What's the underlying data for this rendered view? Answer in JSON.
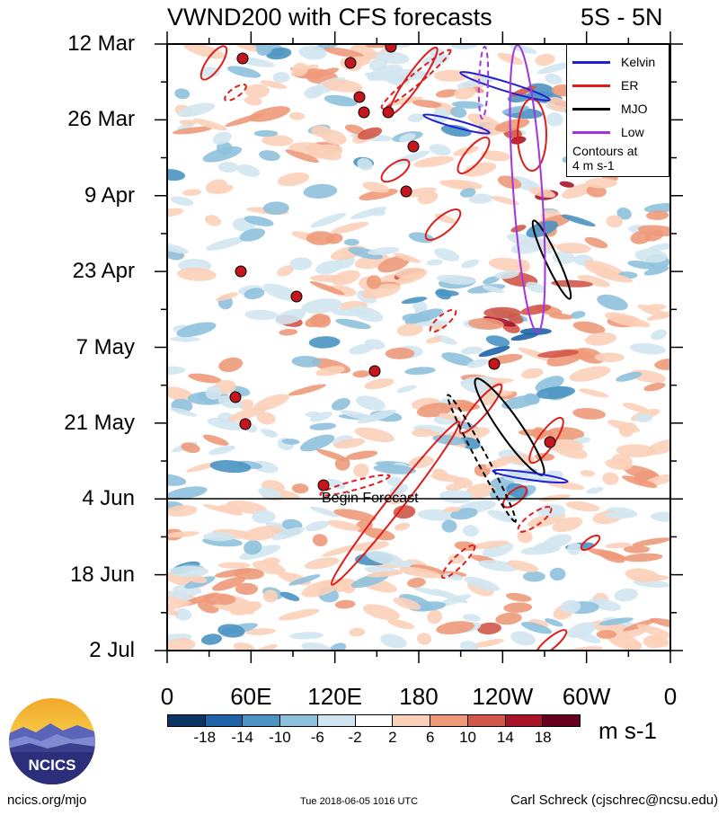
{
  "title": {
    "left": "VWND200 with CFS forecasts",
    "right": "5S - 5N"
  },
  "chart_data": {
    "type": "heatmap",
    "description_field": "Hovmoller of 200-hPa meridional wind anomaly averaged 5S-5N",
    "x_ticks": [
      "0",
      "60E",
      "120E",
      "180",
      "120W",
      "60W",
      "0"
    ],
    "y_ticks": [
      "12 Mar",
      "26 Mar",
      "9 Apr",
      "23 Apr",
      "7 May",
      "21 May",
      "4 Jun",
      "18 Jun",
      "2 Jul"
    ],
    "colorbar": {
      "ticks": [
        "-18",
        "-14",
        "-10",
        "-6",
        "-2",
        "2",
        "6",
        "10",
        "14",
        "18"
      ],
      "colors": [
        "#0b3565",
        "#1f63a8",
        "#4b93c3",
        "#8fc1dd",
        "#d1e5f0",
        "#ffffff",
        "#fbd0b9",
        "#ee9a7a",
        "#d25849",
        "#aa1329",
        "#67001f"
      ],
      "unit": "m s-1"
    },
    "legend": [
      {
        "label": "Kelvin",
        "color": "#1f1fd6"
      },
      {
        "label": "ER",
        "color": "#e01b1b"
      },
      {
        "label": "MJO",
        "color": "#000000"
      },
      {
        "label": "Low",
        "color": "#a234e0"
      }
    ],
    "legend_note": [
      "Contours at",
      "4 m s-1"
    ],
    "forecast_start": "4 Jun",
    "annotation": "Begin Forecast"
  },
  "footer": {
    "left": "ncics.org/mjo",
    "mid": "Tue 2018-06-05 1016 UTC",
    "right": "Carl Schreck (cjschrec@ncsu.edu)",
    "logo_text": "NCICS"
  }
}
